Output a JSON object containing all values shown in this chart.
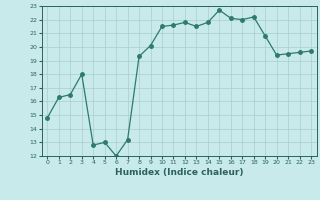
{
  "x": [
    0,
    1,
    2,
    3,
    4,
    5,
    6,
    7,
    8,
    9,
    10,
    11,
    12,
    13,
    14,
    15,
    16,
    17,
    18,
    19,
    20,
    21,
    22,
    23
  ],
  "y": [
    14.8,
    16.3,
    16.5,
    18.0,
    12.8,
    13.0,
    12.0,
    13.2,
    19.3,
    20.1,
    21.5,
    21.6,
    21.8,
    21.5,
    21.8,
    22.7,
    22.1,
    22.0,
    22.2,
    20.8,
    19.4,
    19.5,
    19.6,
    19.7
  ],
  "xlabel": "Humidex (Indice chaleur)",
  "ylim": [
    12,
    23
  ],
  "xlim": [
    -0.5,
    23.5
  ],
  "yticks": [
    12,
    13,
    14,
    15,
    16,
    17,
    18,
    19,
    20,
    21,
    22,
    23
  ],
  "xticks": [
    0,
    1,
    2,
    3,
    4,
    5,
    6,
    7,
    8,
    9,
    10,
    11,
    12,
    13,
    14,
    15,
    16,
    17,
    18,
    19,
    20,
    21,
    22,
    23
  ],
  "line_color": "#2d7a6e",
  "marker_size": 2.5,
  "background_color": "#c8eaea",
  "grid_color": "#aacccc",
  "text_color": "#2d6060"
}
